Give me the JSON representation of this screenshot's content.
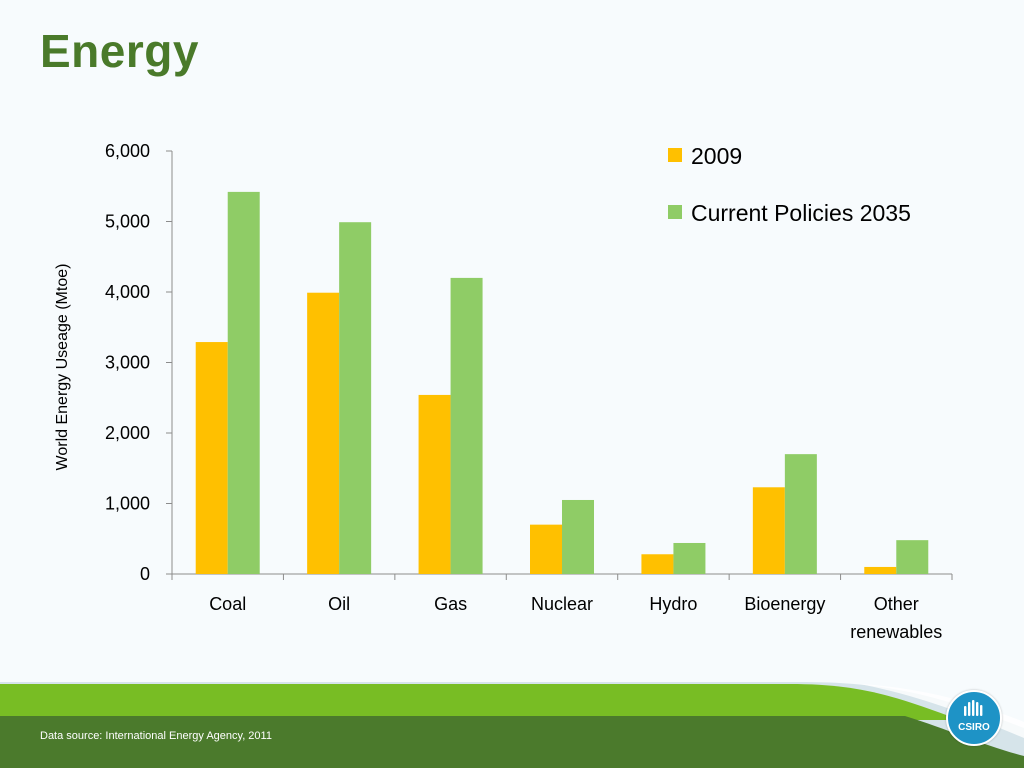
{
  "slide": {
    "title": "Energy",
    "source": "Data source: International Energy Agency, 2011",
    "logo_text": "CSIRO",
    "colors": {
      "title": "#4a7a2a",
      "footer_dark": "#4b7a2c",
      "footer_light": "#78bd24",
      "logo": "#1e93c6"
    }
  },
  "chart_data": {
    "type": "bar",
    "categories": [
      [
        "Coal"
      ],
      [
        "Oil"
      ],
      [
        "Gas"
      ],
      [
        "Nuclear"
      ],
      [
        "Hydro"
      ],
      [
        "Bioenergy"
      ],
      [
        "Other",
        "renewables"
      ]
    ],
    "series": [
      {
        "name": "2009",
        "color": "#ffc000",
        "values": [
          3290,
          3990,
          2540,
          700,
          280,
          1230,
          100
        ]
      },
      {
        "name": "Current Policies 2035",
        "color": "#8fcc66",
        "values": [
          5420,
          4990,
          4200,
          1050,
          440,
          1700,
          480
        ]
      }
    ],
    "title": "",
    "xlabel": "",
    "ylabel": "World Energy Useage (Mtoe)",
    "ylim": [
      0,
      6000
    ],
    "yticks": [
      {
        "value": 0,
        "label": "0"
      },
      {
        "value": 1000,
        "label": "1,000"
      },
      {
        "value": 2000,
        "label": "2,000"
      },
      {
        "value": 3000,
        "label": "3,000"
      },
      {
        "value": 4000,
        "label": "4,000"
      },
      {
        "value": 5000,
        "label": "5,000"
      },
      {
        "value": 6000,
        "label": "6,000"
      }
    ],
    "grid": false,
    "legend": "top-right"
  }
}
